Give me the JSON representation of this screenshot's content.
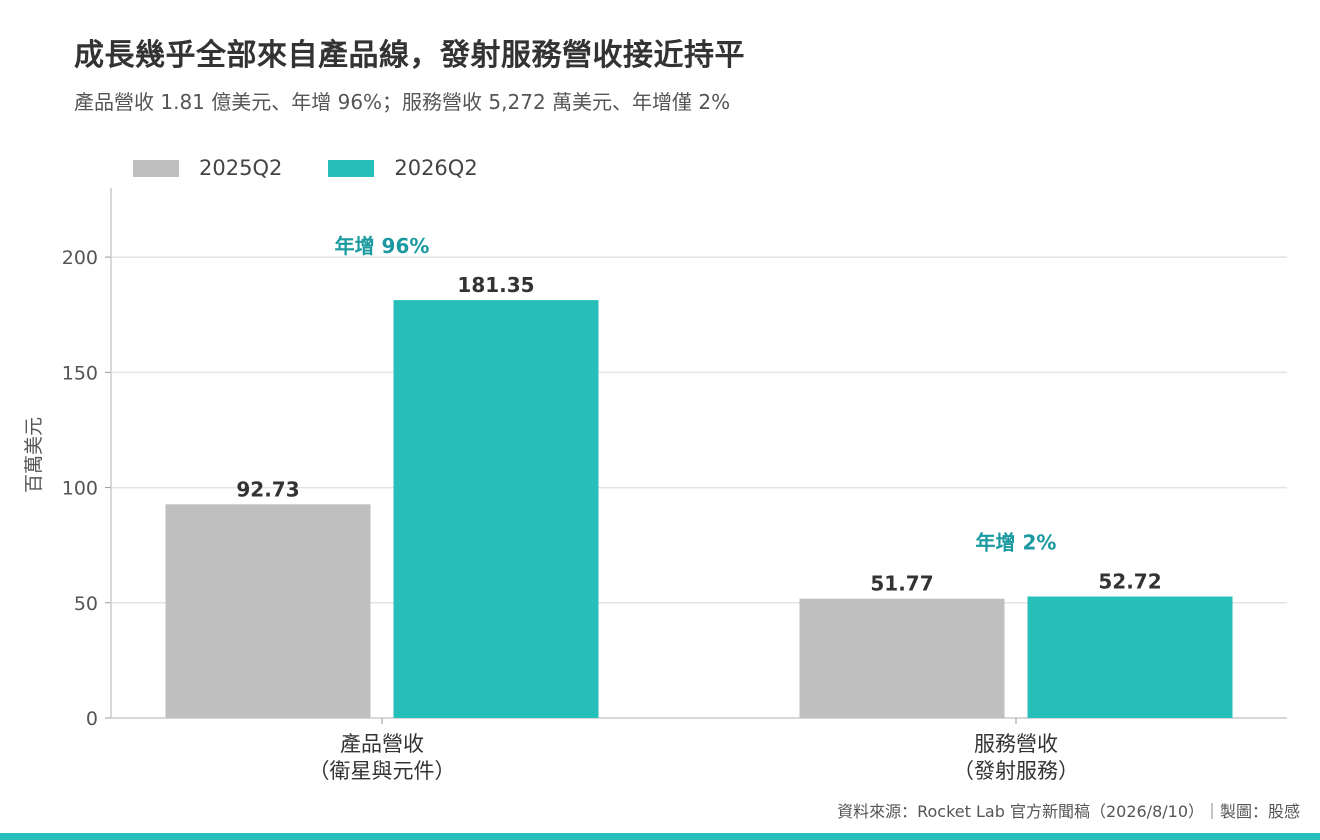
{
  "title": "成長幾乎全部來自產品線，發射服務營收接近持平",
  "subtitle": "產品營收 1.81 億美元、年增 96%；服務營收 5,272 萬美元、年增僅 2%",
  "source": "資料來源：Rocket Lab 官方新聞稿（2026/8/10）｜製圖：股感",
  "colors": {
    "series_2025": "#bfbfbf",
    "series_2026": "#26bfb9",
    "annotation": "#1a9aa0",
    "bottom_bar": "#26bfb9"
  },
  "chart_data": {
    "type": "bar",
    "title": "成長幾乎全部來自產品線，發射服務營收接近持平",
    "ylabel": "百萬美元",
    "xlabel": "",
    "ylim": [
      0,
      230
    ],
    "yticks": [
      0,
      50,
      100,
      150,
      200
    ],
    "grid": true,
    "legend_position": "top-left",
    "categories": [
      {
        "line1": "產品營收",
        "line2": "（衛星與元件）"
      },
      {
        "line1": "服務營收",
        "line2": "（發射服務）"
      }
    ],
    "series": [
      {
        "name": "2025Q2",
        "values": [
          92.73,
          51.77
        ],
        "labels": [
          "92.73",
          "51.77"
        ]
      },
      {
        "name": "2026Q2",
        "values": [
          181.35,
          52.72
        ],
        "labels": [
          "181.35",
          "52.72"
        ]
      }
    ],
    "annotations": [
      "年增 96%",
      "年增 2%"
    ]
  }
}
